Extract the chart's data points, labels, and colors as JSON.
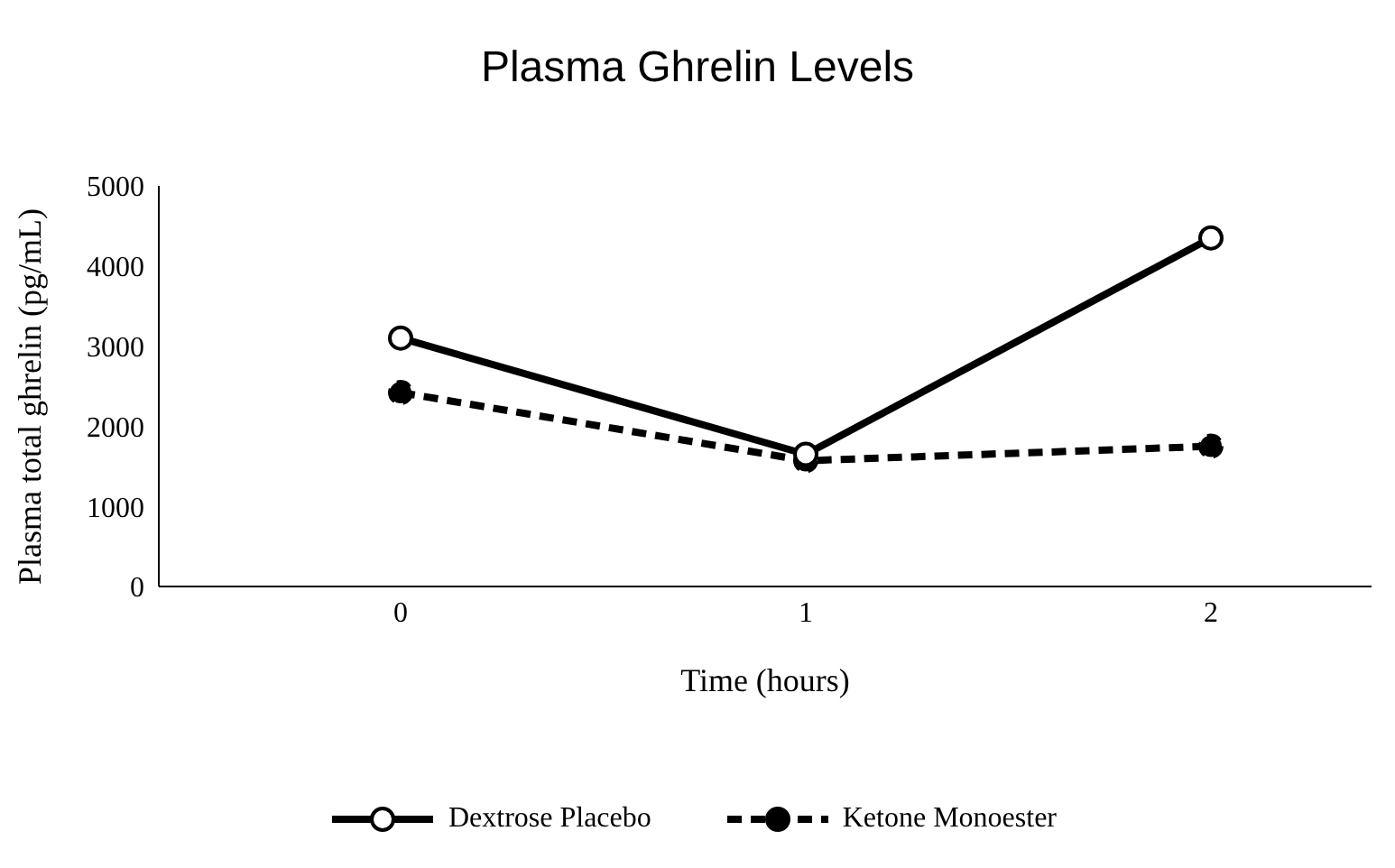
{
  "chart_data": {
    "type": "line",
    "title": "Plasma Ghrelin Levels",
    "xlabel": "Time (hours)",
    "ylabel": "Plasma total ghrelin (pg/mL)",
    "categories": [
      "0",
      "1",
      "2"
    ],
    "series": [
      {
        "name": "Dextrose Placebo",
        "color": "#000000",
        "values": [
          3100,
          1650,
          4350
        ],
        "line_style": "solid",
        "marker": "circle"
      },
      {
        "name": "Ketone Monoester",
        "color": "#000000",
        "values": [
          2420,
          1570,
          1750
        ],
        "line_style": "dashed",
        "marker": "circle"
      }
    ],
    "ylim": [
      0,
      5000
    ],
    "yticks": [
      0,
      1000,
      2000,
      3000,
      4000,
      5000
    ],
    "grid": false,
    "legend": "bottom"
  }
}
